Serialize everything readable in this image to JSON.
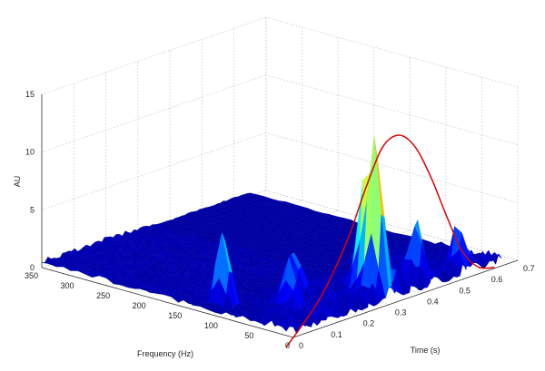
{
  "chart_data": {
    "type": "surface3d",
    "zlabel": "AU",
    "xlabel": "Frequency (Hz)",
    "ylabel": "Time (s)",
    "z_ticks": [
      "0",
      "5",
      "10",
      "15"
    ],
    "freq_ticks": [
      "0",
      "50",
      "100",
      "150",
      "200",
      "250",
      "300",
      "350"
    ],
    "time_ticks": [
      "0",
      "0.1",
      "0.2",
      "0.3",
      "0.4",
      "0.5",
      "0.6",
      "0.7"
    ],
    "zlim": [
      0,
      15
    ],
    "freq_range": [
      0,
      350
    ],
    "time_range": [
      0,
      0.7
    ],
    "grid": true,
    "colormap": [
      "#00008f",
      "#0000ff",
      "#0080ff",
      "#00ffff",
      "#80ff80",
      "#ffff00",
      "#ff8000",
      "#ff0000",
      "#800000"
    ],
    "peaks": [
      {
        "time": 0.3,
        "freq": 20,
        "au": 14.5
      },
      {
        "time": 0.31,
        "freq": 40,
        "au": 9.0
      },
      {
        "time": 0.33,
        "freq": 25,
        "au": 6.5
      },
      {
        "time": 0.05,
        "freq": 120,
        "au": 6.8
      },
      {
        "time": 0.12,
        "freq": 60,
        "au": 4.3
      },
      {
        "time": 0.45,
        "freq": 30,
        "au": 5.0
      },
      {
        "time": 0.55,
        "freq": 15,
        "au": 3.2
      },
      {
        "time": 0.2,
        "freq": 90,
        "au": 4.0
      },
      {
        "time": 0.38,
        "freq": 60,
        "au": 4.5
      }
    ],
    "envelope": {
      "color": "#e00000",
      "description_free": true,
      "time": [
        0.0,
        0.05,
        0.1,
        0.15,
        0.2,
        0.25,
        0.3,
        0.35,
        0.4,
        0.45,
        0.5,
        0.55,
        0.6,
        0.65
      ],
      "au": [
        -1.0,
        0.4,
        2.0,
        4.2,
        7.0,
        10.5,
        13.4,
        14.0,
        12.6,
        9.5,
        5.6,
        2.0,
        0.2,
        -0.3
      ]
    }
  }
}
